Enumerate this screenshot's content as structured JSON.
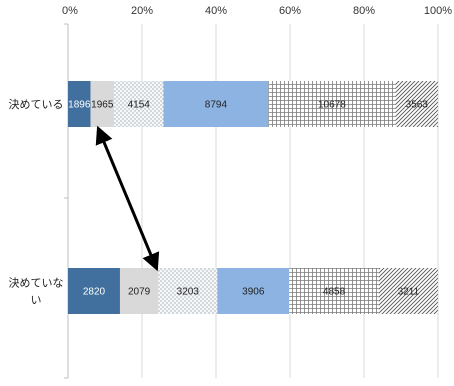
{
  "chart_data": {
    "type": "bar",
    "orientation": "horizontal",
    "stacked": "percent",
    "x_ticks": [
      "0%",
      "20%",
      "40%",
      "60%",
      "80%",
      "100%"
    ],
    "xlim": [
      0,
      100
    ],
    "grid": true,
    "legend": "none",
    "categories": [
      "決めている",
      "決めていない"
    ],
    "category_display": [
      [
        "決めている"
      ],
      [
        "決めていな",
        "い"
      ]
    ],
    "series_colors": [
      "#41709f",
      "#d9d9d9",
      "#f2f2f2",
      "#8db3e2",
      "#f2f2f2",
      "#ffffff"
    ],
    "series_patterns": [
      "solid",
      "solid",
      "dots",
      "solid",
      "grid",
      "diagonal"
    ],
    "series": [
      {
        "values": [
          1896,
          2820
        ]
      },
      {
        "values": [
          1965,
          2079
        ]
      },
      {
        "values": [
          4154,
          3203
        ]
      },
      {
        "values": [
          8794,
          3906
        ]
      },
      {
        "values": [
          10678,
          4858
        ]
      },
      {
        "values": [
          3563,
          3211
        ]
      }
    ],
    "annotation": {
      "type": "double-arrow",
      "from": "決めている: series 2",
      "to": "決めていない: series 2"
    }
  }
}
